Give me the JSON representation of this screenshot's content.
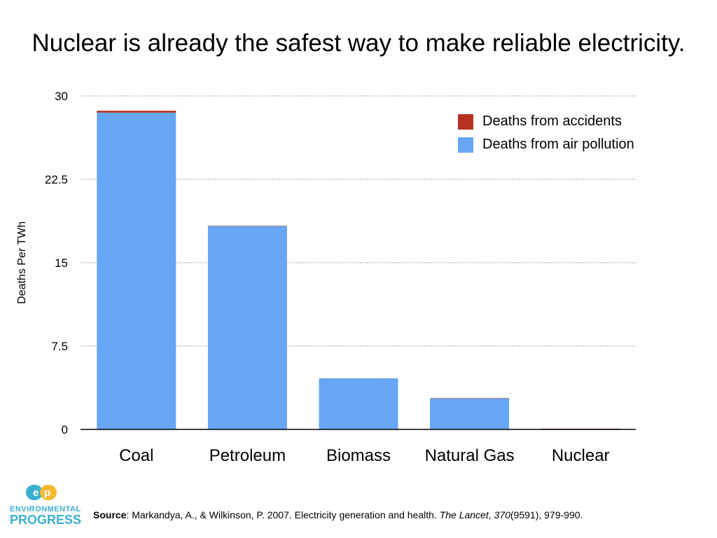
{
  "title": "Nuclear is already the safest way to make reliable electricity.",
  "chart_data": {
    "type": "bar",
    "stacked": true,
    "categories": [
      "Coal",
      "Petroleum",
      "Biomass",
      "Natural Gas",
      "Nuclear"
    ],
    "series": [
      {
        "name": "Deaths from air pollution",
        "color": "#66a6f4",
        "values": [
          28.5,
          18.3,
          4.6,
          2.8,
          0.05
        ]
      },
      {
        "name": "Deaths from accidents",
        "color": "#b83222",
        "values": [
          0.17,
          0.02,
          0.0,
          0.02,
          0.02
        ]
      }
    ],
    "ylabel": "Deaths Per TWh",
    "xlabel": "",
    "ylim": [
      0,
      30
    ],
    "yticks": [
      "0",
      "7.5",
      "15",
      "22.5",
      "30"
    ],
    "grid": "horizontal dotted",
    "legend_placement": "top-right"
  },
  "legend": [
    {
      "label": "Deaths from accidents",
      "color": "#b83222"
    },
    {
      "label": "Deaths from air pollution",
      "color": "#66a6f4"
    }
  ],
  "logo": {
    "line1": "ENVIRONMENTAL",
    "line2": "PROGRESS"
  },
  "source": {
    "label": "Source",
    "text1": ": Markandya, A., & Wilkinson, P. 2007. Electricity generation and health. ",
    "journal": "The Lancet",
    "text2": ", ",
    "volume": "370",
    "text3": "(9591), 979-990."
  }
}
